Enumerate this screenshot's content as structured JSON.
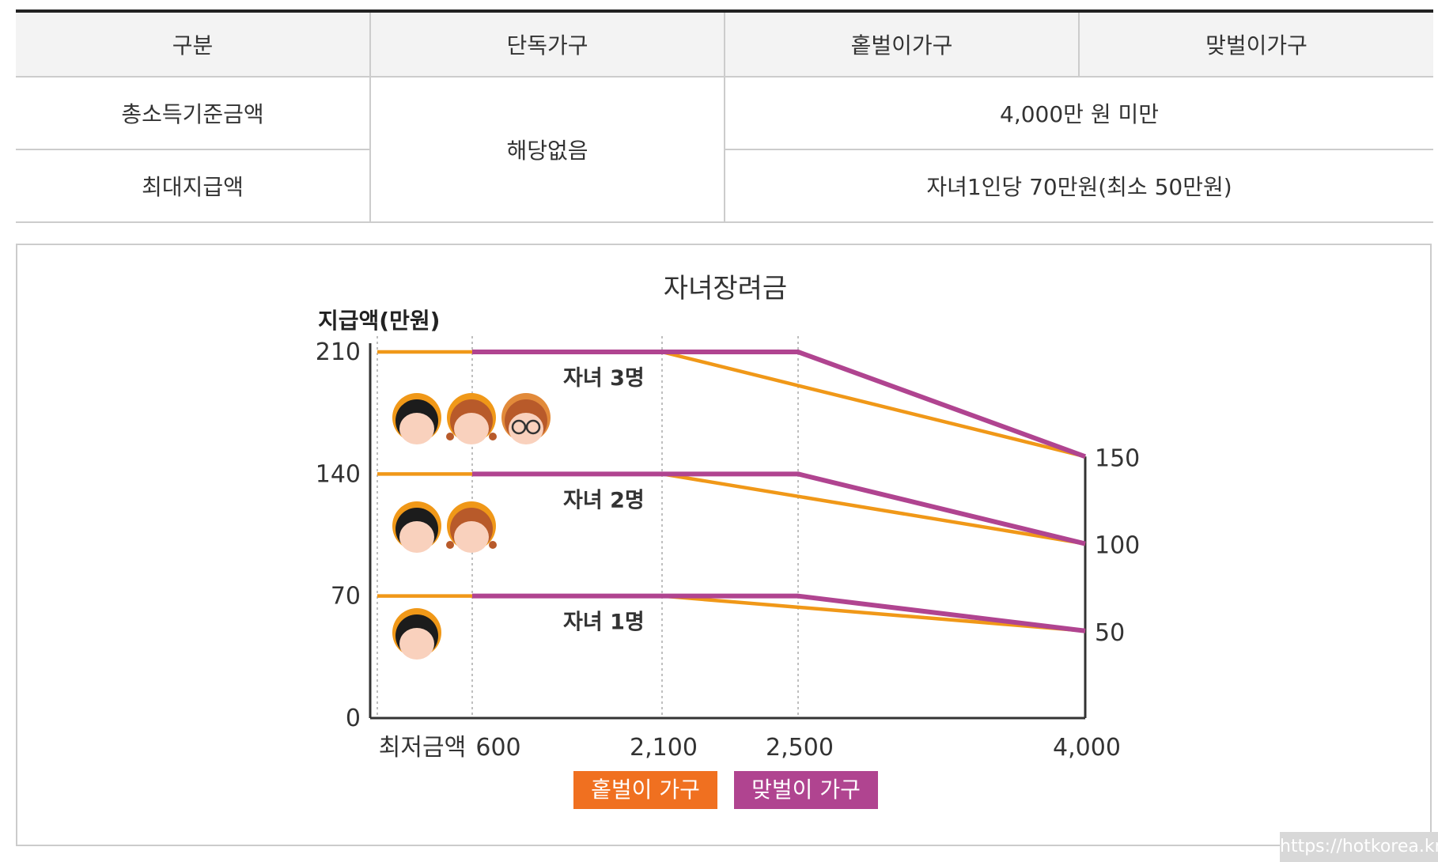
{
  "table": {
    "headers": [
      "구분",
      "단독가구",
      "홑벌이가구",
      "맞벌이가구"
    ],
    "row1_label": "총소득기준금액",
    "row2_label": "최대지급액",
    "single_value": "해당없음",
    "row1_value": "4,000만 원 미만",
    "row2_value": "자녀1인당 70만원(최소 50만원)"
  },
  "chart_data": {
    "type": "line",
    "title": "자녀장려금",
    "ylabel": "지급액(만원)",
    "ylim": [
      0,
      210
    ],
    "y_ticks": [
      "0",
      "70",
      "140",
      "210"
    ],
    "y_tick_values": [
      0,
      70,
      140,
      210
    ],
    "x_ticks": [
      "최저금액",
      "600",
      "2,100",
      "2,500",
      "4,000"
    ],
    "x_tick_values": [
      0,
      600,
      2100,
      2500,
      4000
    ],
    "right_labels": [
      "150",
      "100",
      "50"
    ],
    "right_label_values": [
      150,
      100,
      50
    ],
    "series": [
      {
        "group": "자녀 3명",
        "household": "홑벌이 가구",
        "color": "#f09818",
        "points": [
          [
            0,
            210
          ],
          [
            2100,
            210
          ],
          [
            4000,
            150
          ]
        ]
      },
      {
        "group": "자녀 3명",
        "household": "맞벌이 가구",
        "color": "#b04490",
        "points": [
          [
            600,
            210
          ],
          [
            2500,
            210
          ],
          [
            4000,
            150
          ]
        ]
      },
      {
        "group": "자녀 2명",
        "household": "홑벌이 가구",
        "color": "#f09818",
        "points": [
          [
            0,
            140
          ],
          [
            2100,
            140
          ],
          [
            4000,
            100
          ]
        ]
      },
      {
        "group": "자녀 2명",
        "household": "맞벌이 가구",
        "color": "#b04490",
        "points": [
          [
            600,
            140
          ],
          [
            2500,
            140
          ],
          [
            4000,
            100
          ]
        ]
      },
      {
        "group": "자녀 1명",
        "household": "홑벌이 가구",
        "color": "#f09818",
        "points": [
          [
            0,
            70
          ],
          [
            2100,
            70
          ],
          [
            4000,
            50
          ]
        ]
      },
      {
        "group": "자녀 1명",
        "household": "맞벌이 가구",
        "color": "#b04490",
        "points": [
          [
            600,
            70
          ],
          [
            2500,
            70
          ],
          [
            4000,
            50
          ]
        ]
      }
    ],
    "group_labels": [
      {
        "text": "자녀 3명",
        "children": [
          "boy",
          "girl",
          "boy-glasses"
        ]
      },
      {
        "text": "자녀 2명",
        "children": [
          "boy",
          "girl"
        ]
      },
      {
        "text": "자녀 1명",
        "children": [
          "boy"
        ]
      }
    ],
    "legend": [
      {
        "label": "홑벌이 가구",
        "color": "#f07020"
      },
      {
        "label": "맞벌이 가구",
        "color": "#b04490"
      }
    ]
  },
  "watermark": "https://hotkorea.kr"
}
